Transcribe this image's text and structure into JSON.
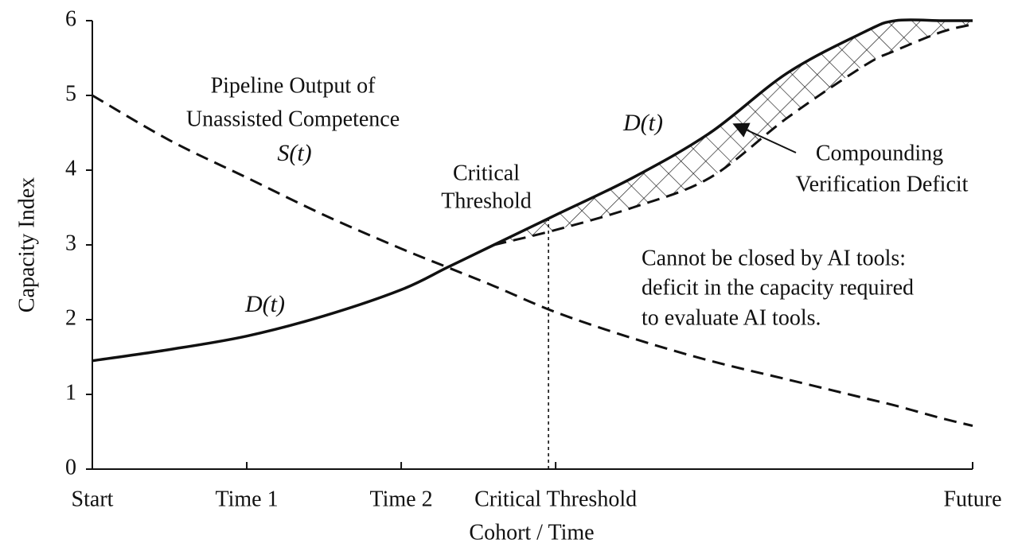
{
  "chart_data": {
    "type": "line",
    "x_label": "Cohort / Time",
    "y_label": "Capacity Index",
    "x": [
      0,
      0.5,
      1,
      1.5,
      2,
      2.3,
      2.6,
      3,
      3.5,
      4,
      4.5,
      5,
      5.2,
      5.5,
      5.7
    ],
    "series": [
      {
        "name": "S(t)",
        "color": "#111111",
        "dashed": true,
        "values": [
          5,
          4.4,
          3.9,
          3.4,
          2.95,
          2.7,
          2.45,
          2.1,
          1.75,
          1.45,
          1.2,
          0.95,
          0.85,
          0.68,
          0.58
        ]
      },
      {
        "name": "D(t)",
        "color": "#111111",
        "dashed": false,
        "values": [
          1.45,
          1.6,
          1.78,
          2.05,
          2.4,
          2.7,
          3.0,
          3.4,
          3.9,
          4.5,
          5.3,
          5.85,
          6.0,
          6.0,
          6.0
        ]
      },
      {
        "color": "#111111",
        "dashed": true,
        "values": [
          null,
          null,
          null,
          null,
          null,
          null,
          3.0,
          3.2,
          3.5,
          3.9,
          4.7,
          5.4,
          5.6,
          5.85,
          5.95
        ]
      }
    ],
    "threshold_x": 3,
    "xlim": [
      0,
      5.7
    ],
    "ylim": [
      0,
      6
    ],
    "xticks": [
      {
        "value": 0,
        "label": "Start"
      },
      {
        "value": 1,
        "label": "Time 1"
      },
      {
        "value": 2,
        "label": "Time 2"
      },
      {
        "value": 3,
        "label": "Critical Threshold"
      },
      {
        "value": 5.7,
        "label": "Future"
      }
    ],
    "yticks": [
      0,
      1,
      2,
      3,
      4,
      5,
      6
    ],
    "grid": false,
    "annotations": [
      "Pipeline Output of",
      "Unassisted Competence",
      "S(t)",
      "D(t)",
      "D(t)",
      "Critical",
      "Threshold",
      "Compounding",
      "Verification Deficit",
      "Cannot be closed by AI tools:",
      "deficit in the capacity required",
      "to evaluate AI tools."
    ]
  }
}
